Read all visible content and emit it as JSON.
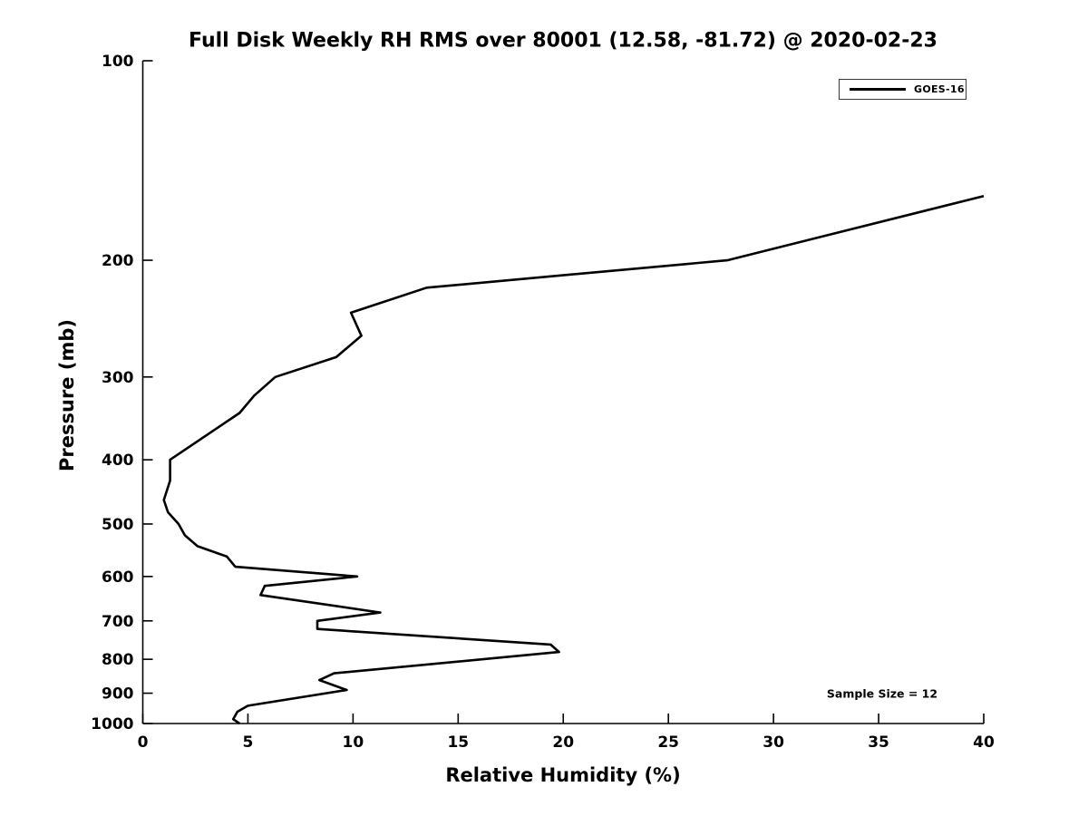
{
  "chart_data": {
    "type": "line",
    "title": "Full Disk Weekly RH RMS over 80001 (12.58, -81.72) @ 2020-02-23",
    "xlabel": "Relative Humidity (%)",
    "ylabel": "Pressure (mb)",
    "annotation": "Sample Size = 12",
    "xlim": [
      0,
      40
    ],
    "x_ticks": [
      0,
      5,
      10,
      15,
      20,
      25,
      30,
      35,
      40
    ],
    "ylim": [
      100,
      1000
    ],
    "y_ticks": [
      100,
      200,
      300,
      400,
      500,
      600,
      700,
      800,
      900,
      1000
    ],
    "y_scale": "log",
    "y_inverted": true,
    "grid": false,
    "legend_position": "top-right",
    "axis_color": "#000000",
    "series": [
      {
        "name": "GOES-16",
        "color": "#000000",
        "pressure_mb": [
          160,
          200,
          220,
          240,
          260,
          280,
          300,
          320,
          340,
          400,
          430,
          460,
          480,
          500,
          520,
          540,
          560,
          580,
          600,
          620,
          640,
          680,
          700,
          720,
          760,
          780,
          840,
          860,
          890,
          940,
          960,
          985,
          1000
        ],
        "rh_rms_percent": [
          40.0,
          27.8,
          13.5,
          9.9,
          10.4,
          9.2,
          6.3,
          5.3,
          4.6,
          1.3,
          1.3,
          1.0,
          1.2,
          1.7,
          2.0,
          2.6,
          4.0,
          4.4,
          10.2,
          5.8,
          5.6,
          11.3,
          8.3,
          8.3,
          19.4,
          19.8,
          9.1,
          8.4,
          9.7,
          5.0,
          4.5,
          4.3,
          4.6
        ]
      }
    ]
  }
}
